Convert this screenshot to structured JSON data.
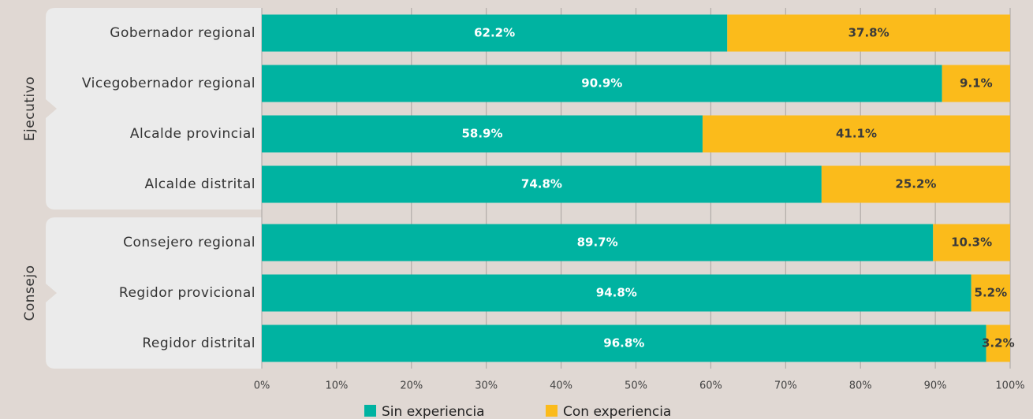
{
  "chart_data": {
    "type": "stacked_bar_horizontal",
    "groups": [
      {
        "name": "Ejecutivo",
        "categories": [
          "Gobernador regional",
          "Vicegobernador regional",
          "Alcalde provincial",
          "Alcalde distrital"
        ]
      },
      {
        "name": "Consejo",
        "categories": [
          "Consejero regional",
          "Regidor provicional",
          "Regidor distrital"
        ]
      }
    ],
    "series": [
      {
        "name": "Sin experiencia",
        "color": "#00b3a1",
        "values": [
          62.2,
          90.9,
          58.9,
          74.8,
          89.7,
          94.8,
          96.8
        ],
        "value_labels": [
          "62.2%",
          "90.9%",
          "58.9%",
          "74.8%",
          "89.7%",
          "94.8%",
          "96.8%"
        ]
      },
      {
        "name": "Con experiencia",
        "color": "#fbbb1b",
        "values": [
          37.8,
          9.1,
          41.1,
          25.2,
          10.3,
          5.2,
          3.2
        ],
        "value_labels": [
          "37.8%",
          "9.1%",
          "41.1%",
          "25.2%",
          "10.3%",
          "5.2%",
          "3.2%"
        ]
      }
    ],
    "xlim": [
      0,
      100
    ],
    "xticks": [
      {
        "value": 0,
        "label": "0%"
      },
      {
        "value": 10,
        "label": "10%"
      },
      {
        "value": 20,
        "label": "20%"
      },
      {
        "value": 30,
        "label": "30%"
      },
      {
        "value": 40,
        "label": "40%"
      },
      {
        "value": 50,
        "label": "50%"
      },
      {
        "value": 60,
        "label": "60%"
      },
      {
        "value": 70,
        "label": "70%"
      },
      {
        "value": 80,
        "label": "80%"
      },
      {
        "value": 90,
        "label": "90%"
      },
      {
        "value": 100,
        "label": "100%"
      }
    ],
    "grid": true,
    "legend": "bottom"
  }
}
